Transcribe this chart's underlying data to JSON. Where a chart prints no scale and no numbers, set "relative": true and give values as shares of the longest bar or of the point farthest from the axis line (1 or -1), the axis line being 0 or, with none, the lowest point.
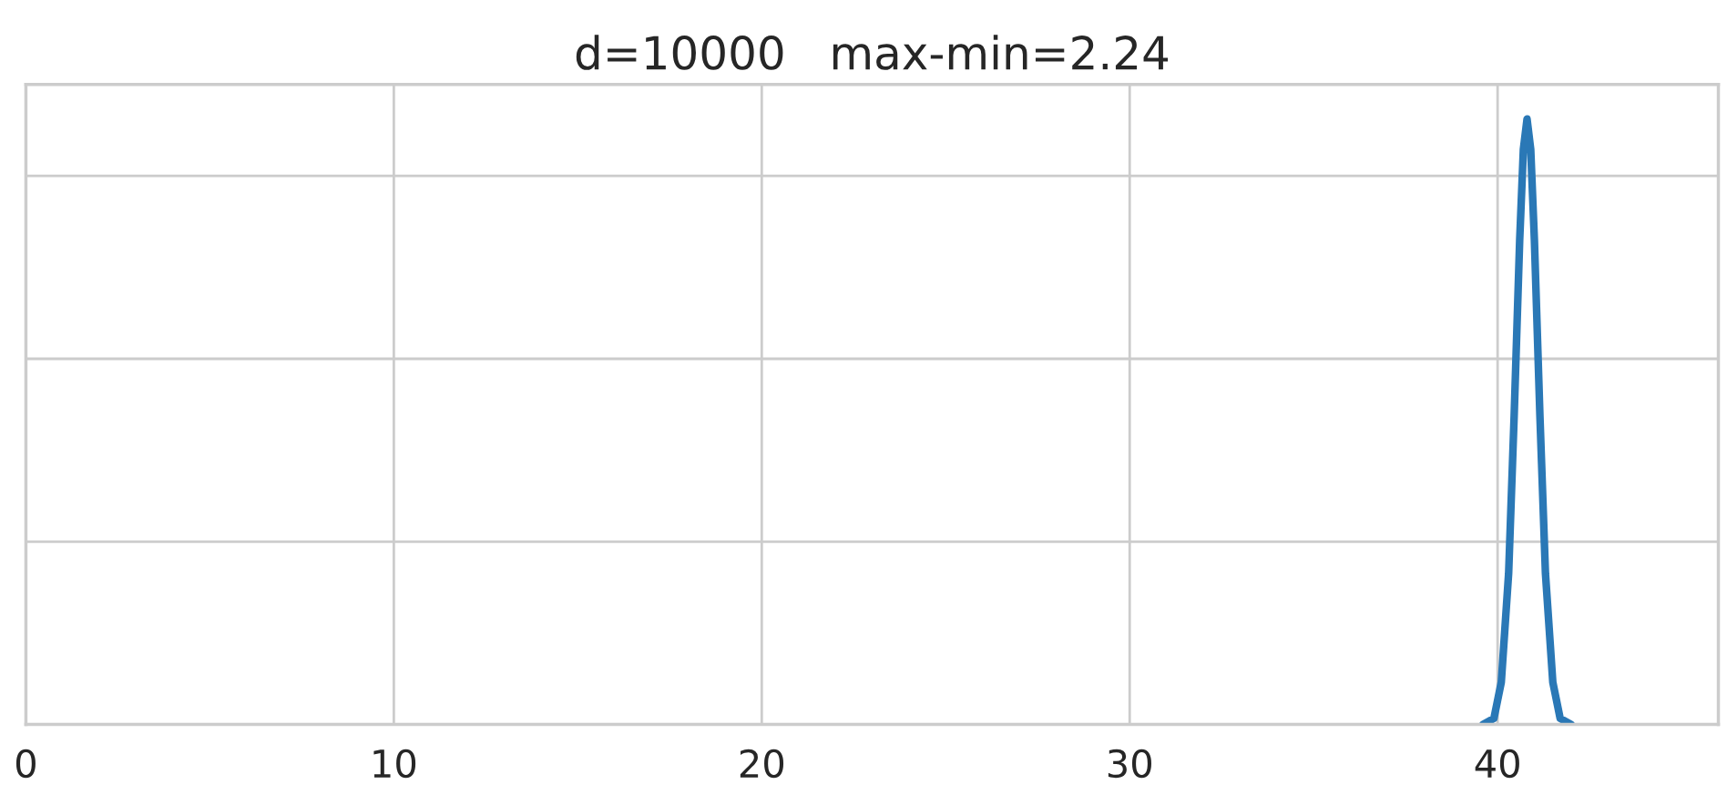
{
  "chart_data": {
    "type": "line",
    "title": "d=10000   max-min=2.24",
    "relative": true,
    "series": [
      {
        "color": "#2a78b6",
        "x": [
          39.6,
          39.9,
          40.1,
          40.3,
          40.45,
          40.6,
          40.7,
          40.8,
          40.9,
          41.0,
          41.15,
          41.3,
          41.5,
          41.7,
          42.0
        ],
        "values": [
          0.0,
          0.01,
          0.07,
          0.25,
          0.51,
          0.8,
          0.95,
          1.0,
          0.95,
          0.8,
          0.51,
          0.25,
          0.07,
          0.01,
          0.0
        ]
      }
    ],
    "xlim": [
      0,
      46
    ],
    "xticks": [
      0,
      10,
      20,
      30,
      40
    ],
    "grid": true,
    "tick_labels": "x"
  }
}
